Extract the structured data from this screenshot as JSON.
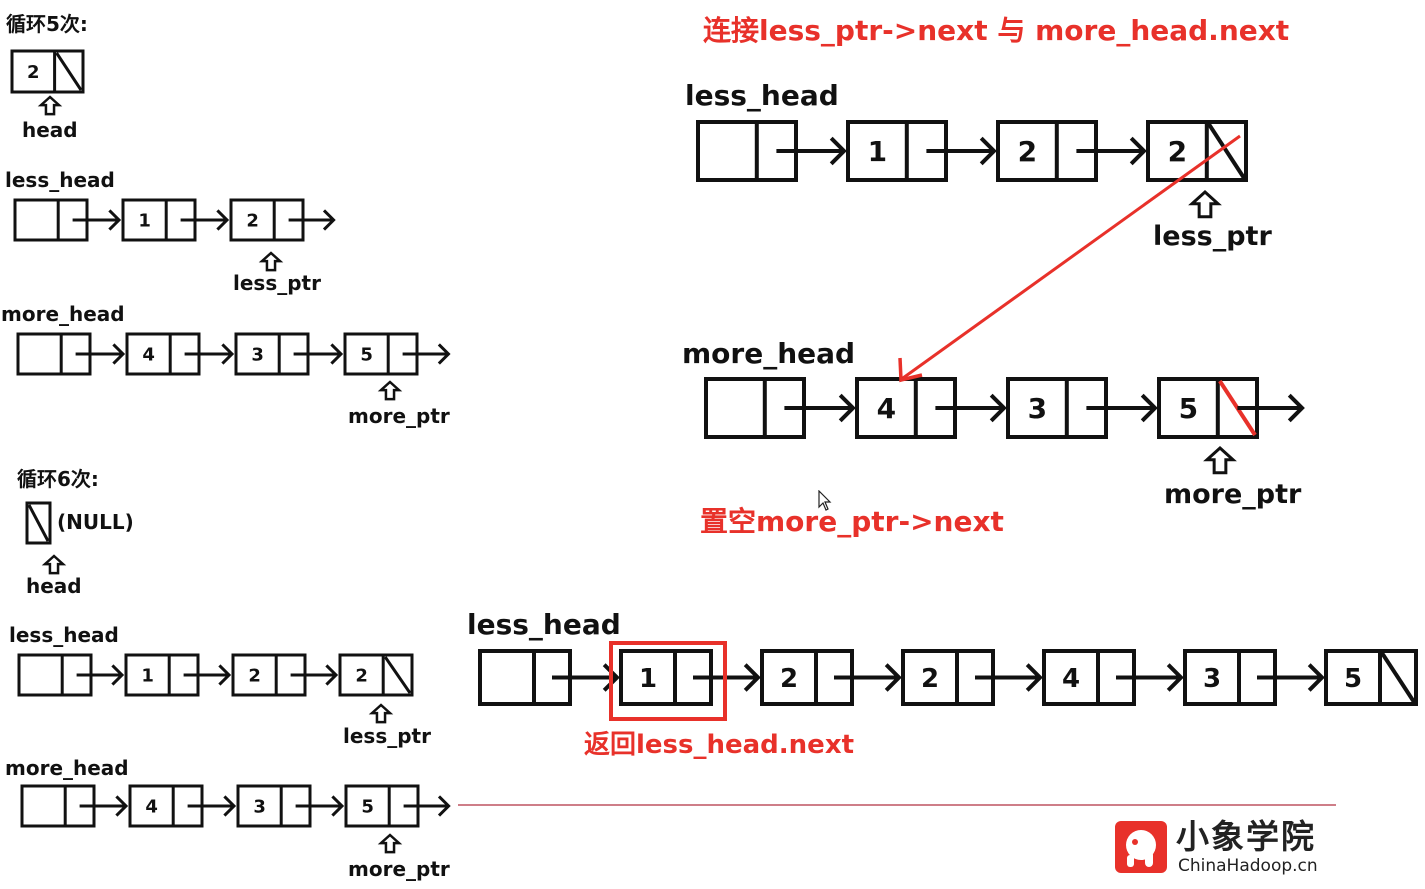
{
  "loop5": {
    "title": "循环5次:",
    "head": {
      "node_value": "2",
      "label": "head"
    },
    "less_list": {
      "label": "less_head",
      "nodes": [
        "1",
        "2"
      ],
      "ptr_label": "less_ptr"
    },
    "more_list": {
      "label": "more_head",
      "nodes": [
        "4",
        "3",
        "5"
      ],
      "ptr_label": "more_ptr"
    }
  },
  "step": {
    "connect_caption": "连接less_ptr->next 与 more_head.next",
    "less_list": {
      "label": "less_head",
      "nodes": [
        "1",
        "2",
        "2"
      ],
      "ptr_label": "less_ptr"
    },
    "more_list": {
      "label": "more_head",
      "nodes": [
        "4",
        "3",
        "5"
      ],
      "ptr_label": "more_ptr"
    },
    "null_caption": "置空more_ptr->next"
  },
  "loop6": {
    "title": "循环6次:",
    "head": {
      "null_text": "(NULL)",
      "label": "head"
    },
    "less_list": {
      "label": "less_head",
      "nodes": [
        "1",
        "2",
        "2"
      ],
      "ptr_label": "less_ptr"
    },
    "more_list": {
      "label": "more_head",
      "nodes": [
        "4",
        "3",
        "5"
      ],
      "ptr_label": "more_ptr"
    }
  },
  "result": {
    "label": "less_head",
    "nodes": [
      "1",
      "2",
      "2",
      "4",
      "3",
      "5"
    ],
    "return_caption": "返回less_head.next"
  },
  "logo": {
    "chinese": "小象学院",
    "english": "ChinaHadoop.cn"
  },
  "colors": {
    "accent": "#e8312a",
    "ink": "#111111",
    "divider": "#b03040"
  }
}
